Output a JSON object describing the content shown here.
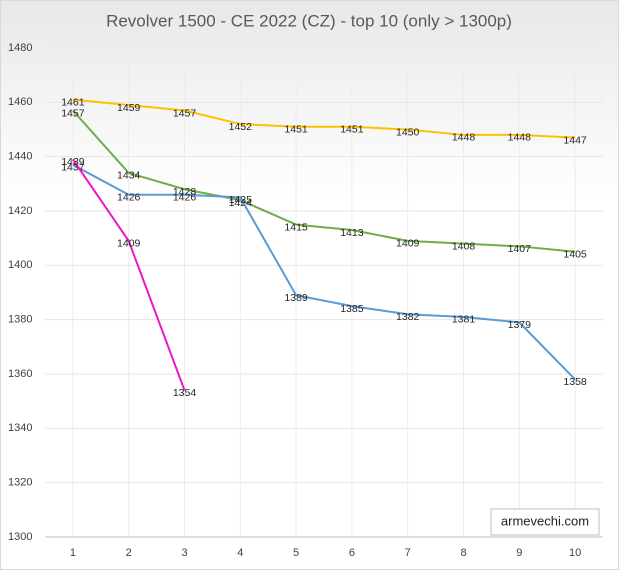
{
  "chart_data": {
    "type": "line",
    "title": "Revolver 1500 - CE 2022 (CZ) - top 10 (only > 1300p)",
    "categories": [
      1,
      2,
      3,
      4,
      5,
      6,
      7,
      8,
      9,
      10
    ],
    "series": [
      {
        "color": "#ffc000",
        "values": [
          1461,
          1459,
          1457,
          1452,
          1451,
          1451,
          1450,
          1448,
          1448,
          1447
        ]
      },
      {
        "color": "#70ad47",
        "values": [
          1457,
          1434,
          1428,
          1424,
          1415,
          1413,
          1409,
          1408,
          1407,
          1405
        ]
      },
      {
        "color": "#5b9bd5",
        "values": [
          1437,
          1426,
          1426,
          1425,
          1389,
          1385,
          1382,
          1381,
          1379,
          1358
        ]
      },
      {
        "color": "#ec17c8",
        "values": [
          1439,
          1409,
          1354,
          null,
          null,
          null,
          null,
          null,
          null,
          null
        ]
      }
    ],
    "ylim": [
      1300,
      1480
    ],
    "yticks": [
      1300,
      1320,
      1340,
      1360,
      1380,
      1400,
      1420,
      1440,
      1460,
      1480
    ],
    "grid": true,
    "annotation": "armevechi.com"
  }
}
